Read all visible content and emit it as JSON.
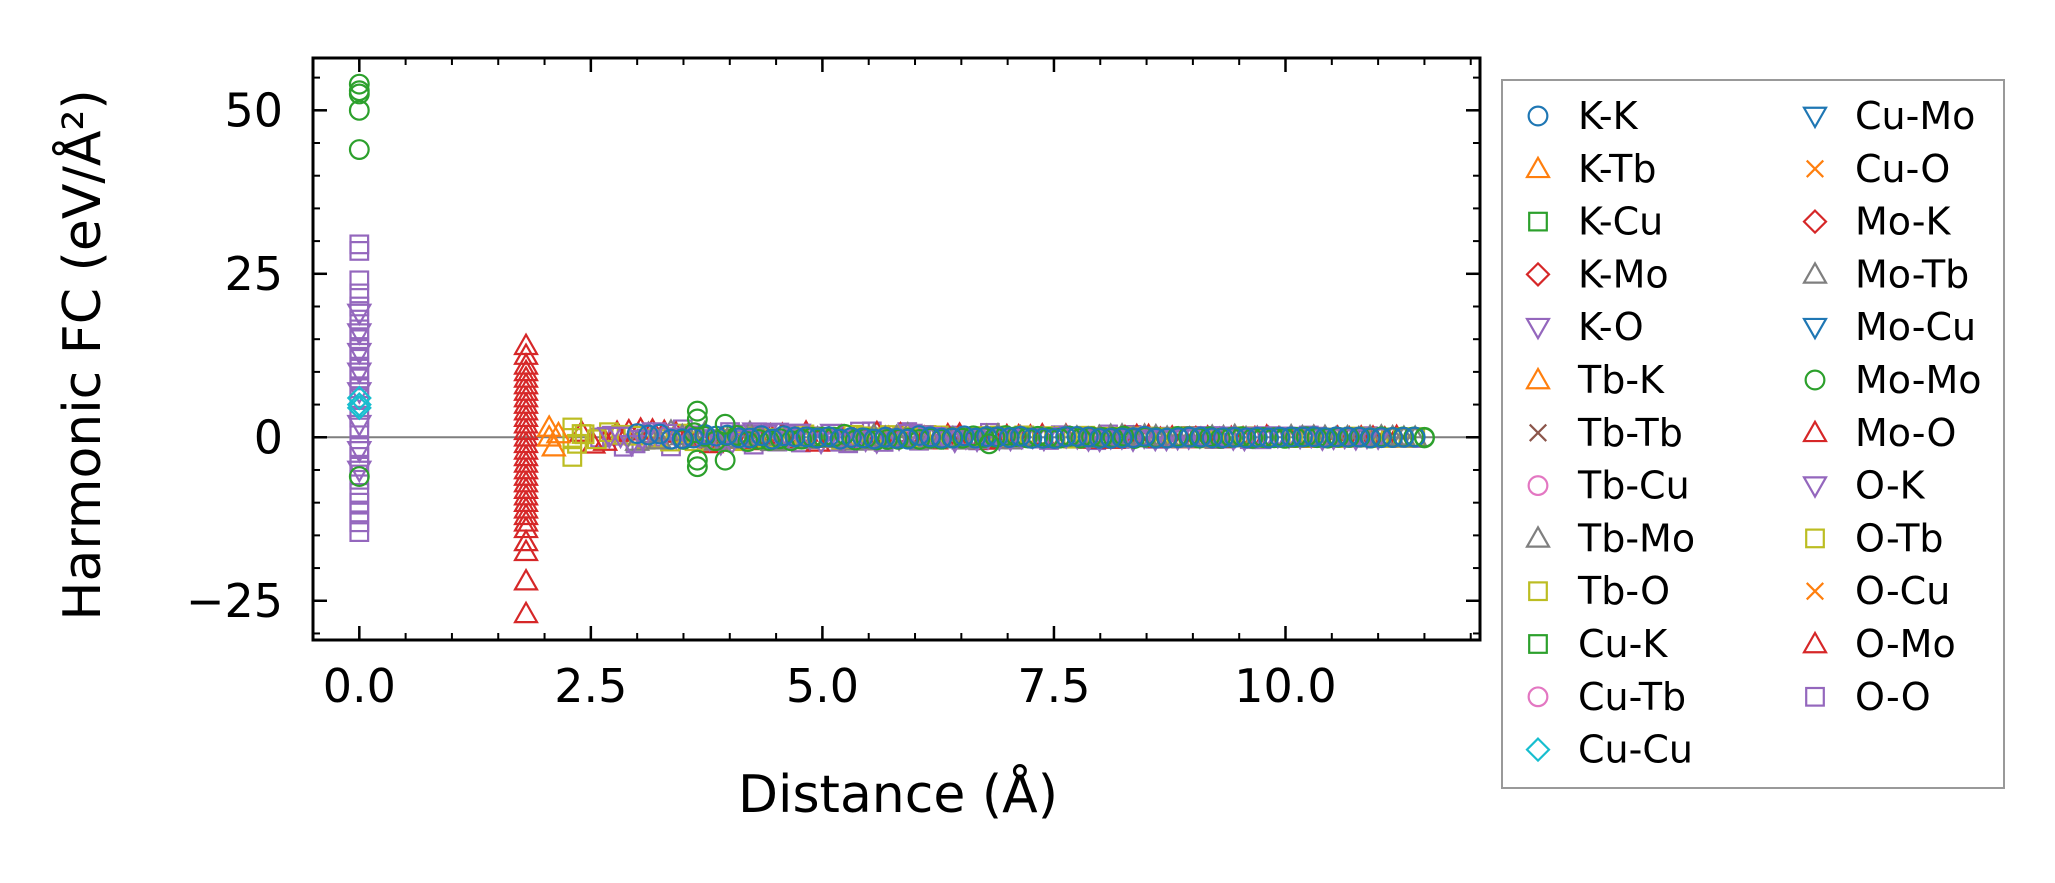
{
  "chart_data": {
    "type": "scatter",
    "title": "",
    "xlabel": "Distance (Å)",
    "ylabel": "Harmonic FC (eV/Å²)",
    "xlim": [
      -0.5,
      12.1
    ],
    "ylim": [
      -31,
      58
    ],
    "xticks": [
      {
        "value": 0.0,
        "label": "0.0"
      },
      {
        "value": 2.5,
        "label": "2.5"
      },
      {
        "value": 5.0,
        "label": "5.0"
      },
      {
        "value": 7.5,
        "label": "7.5"
      },
      {
        "value": 10.0,
        "label": "10.0"
      }
    ],
    "yticks": [
      {
        "value": -25,
        "label": "−25"
      },
      {
        "value": 0,
        "label": "0"
      },
      {
        "value": 25,
        "label": "25"
      },
      {
        "value": 50,
        "label": "50"
      }
    ],
    "zero_line": true,
    "legend_position": "outside-right",
    "legend": [
      {
        "label": "K-K",
        "marker": "circle",
        "color": "#1f77b4"
      },
      {
        "label": "K-Tb",
        "marker": "triangle-up",
        "color": "#ff7f0e"
      },
      {
        "label": "K-Cu",
        "marker": "square",
        "color": "#2ca02c"
      },
      {
        "label": "K-Mo",
        "marker": "diamond",
        "color": "#d62728"
      },
      {
        "label": "K-O",
        "marker": "triangle-down",
        "color": "#9467bd"
      },
      {
        "label": "Tb-K",
        "marker": "triangle-up",
        "color": "#ff7f0e"
      },
      {
        "label": "Tb-Tb",
        "marker": "x",
        "color": "#8c564b"
      },
      {
        "label": "Tb-Cu",
        "marker": "circle",
        "color": "#e377c2"
      },
      {
        "label": "Tb-Mo",
        "marker": "triangle-up",
        "color": "#7f7f7f"
      },
      {
        "label": "Tb-O",
        "marker": "square",
        "color": "#bcbd22"
      },
      {
        "label": "Cu-K",
        "marker": "square",
        "color": "#2ca02c"
      },
      {
        "label": "Cu-Tb",
        "marker": "circle",
        "color": "#e377c2"
      },
      {
        "label": "Cu-Cu",
        "marker": "diamond",
        "color": "#17becf"
      },
      {
        "label": "Cu-Mo",
        "marker": "triangle-down",
        "color": "#1f77b4"
      },
      {
        "label": "Cu-O",
        "marker": "x",
        "color": "#ff7f0e"
      },
      {
        "label": "Mo-K",
        "marker": "diamond",
        "color": "#d62728"
      },
      {
        "label": "Mo-Tb",
        "marker": "triangle-up",
        "color": "#7f7f7f"
      },
      {
        "label": "Mo-Cu",
        "marker": "triangle-down",
        "color": "#1f77b4"
      },
      {
        "label": "Mo-Mo",
        "marker": "circle",
        "color": "#2ca02c"
      },
      {
        "label": "Mo-O",
        "marker": "triangle-up",
        "color": "#d62728"
      },
      {
        "label": "O-K",
        "marker": "triangle-down",
        "color": "#9467bd"
      },
      {
        "label": "O-Tb",
        "marker": "square",
        "color": "#bcbd22"
      },
      {
        "label": "O-Cu",
        "marker": "x",
        "color": "#ff7f0e"
      },
      {
        "label": "O-Mo",
        "marker": "triangle-up",
        "color": "#d62728"
      },
      {
        "label": "O-O",
        "marker": "square",
        "color": "#9467bd"
      }
    ],
    "series": [
      {
        "name": "O-O",
        "marker": "square",
        "color": "#9467bd",
        "points": [
          [
            0,
            29.5
          ],
          [
            0,
            28.5
          ],
          [
            0,
            24
          ],
          [
            0,
            22
          ],
          [
            0,
            20
          ],
          [
            0,
            18
          ],
          [
            0,
            16.5
          ],
          [
            0,
            15
          ],
          [
            0,
            13.5
          ],
          [
            0,
            12
          ],
          [
            0,
            10.5
          ],
          [
            0,
            9
          ],
          [
            0,
            7.5
          ],
          [
            0,
            6
          ],
          [
            0,
            3
          ],
          [
            0,
            1.5
          ],
          [
            0,
            -1.5
          ],
          [
            0,
            -3
          ],
          [
            0,
            -4.5
          ],
          [
            0,
            -6.5
          ],
          [
            0,
            -8.5
          ],
          [
            0,
            -10
          ],
          [
            0,
            -11.5
          ],
          [
            0,
            -13
          ],
          [
            0,
            -14.5
          ]
        ]
      },
      {
        "name": "K-O",
        "marker": "triangle-down",
        "color": "#9467bd",
        "points": [
          [
            0,
            19
          ],
          [
            0,
            16
          ],
          [
            0,
            13
          ],
          [
            0,
            10
          ],
          [
            0,
            7
          ],
          [
            0,
            2
          ],
          [
            0,
            -2
          ],
          [
            0,
            -5
          ]
        ]
      },
      {
        "name": "Cu-Cu",
        "marker": "diamond",
        "color": "#17becf",
        "points": [
          [
            0,
            6
          ],
          [
            0,
            5
          ],
          [
            0,
            4.5
          ]
        ]
      },
      {
        "name": "Mo-Mo",
        "marker": "circle",
        "color": "#2ca02c",
        "points": [
          [
            0,
            54
          ],
          [
            0,
            53
          ],
          [
            0,
            52.5
          ],
          [
            0,
            50
          ],
          [
            0,
            44
          ],
          [
            0,
            -6
          ],
          [
            3.65,
            4
          ],
          [
            3.65,
            2.8
          ],
          [
            3.65,
            -3.5
          ],
          [
            3.65,
            -4.5
          ],
          [
            3.95,
            -3.5
          ],
          [
            3.95,
            2
          ],
          [
            6.8,
            -1
          ],
          [
            11.5,
            0
          ]
        ]
      },
      {
        "name": "Mo-O",
        "marker": "triangle-up",
        "color": "#d62728",
        "points": [
          [
            1.8,
            14
          ],
          [
            1.8,
            12.5
          ],
          [
            1.8,
            11
          ],
          [
            1.8,
            10
          ],
          [
            1.8,
            9
          ],
          [
            1.8,
            8
          ],
          [
            1.8,
            7
          ],
          [
            1.8,
            6
          ],
          [
            1.8,
            5
          ],
          [
            1.8,
            4
          ],
          [
            1.8,
            3
          ],
          [
            1.8,
            2
          ],
          [
            1.8,
            1
          ],
          [
            1.8,
            0
          ],
          [
            1.8,
            -1
          ],
          [
            1.8,
            -2
          ],
          [
            1.8,
            -3
          ],
          [
            1.8,
            -4
          ],
          [
            1.8,
            -5
          ],
          [
            1.8,
            -6
          ],
          [
            1.8,
            -7
          ],
          [
            1.8,
            -8
          ],
          [
            1.8,
            -9
          ],
          [
            1.8,
            -10
          ],
          [
            1.8,
            -11
          ],
          [
            1.8,
            -12
          ],
          [
            1.8,
            -13
          ],
          [
            1.8,
            -14
          ],
          [
            1.8,
            -16
          ],
          [
            1.8,
            -17.5
          ],
          [
            1.8,
            -22
          ],
          [
            1.8,
            -27
          ]
        ]
      },
      {
        "name": "Tb-O",
        "marker": "square",
        "color": "#bcbd22",
        "points": [
          [
            2.3,
            -3
          ],
          [
            2.3,
            1.5
          ],
          [
            2.35,
            -1
          ],
          [
            2.4,
            0.5
          ]
        ]
      },
      {
        "name": "K-Tb",
        "marker": "triangle-up",
        "color": "#ff7f0e",
        "points": [
          [
            2.05,
            0
          ],
          [
            2.05,
            1.5
          ],
          [
            2.1,
            -1.5
          ],
          [
            2.15,
            0.5
          ]
        ]
      }
    ],
    "band_series": [
      {
        "name": "O-O",
        "marker": "square",
        "color": "#9467bd",
        "x_range": [
          2.6,
          11.4
        ],
        "amplitude": 2.0
      },
      {
        "name": "Mo-O",
        "marker": "triangle-up",
        "color": "#d62728",
        "x_range": [
          2.4,
          11.2
        ],
        "amplitude": 1.5
      },
      {
        "name": "Tb-O",
        "marker": "square",
        "color": "#bcbd22",
        "x_range": [
          2.3,
          11.4
        ],
        "amplitude": 1.0
      },
      {
        "name": "Tb-Mo",
        "marker": "triangle-up",
        "color": "#7f7f7f",
        "x_range": [
          3.0,
          11.4
        ],
        "amplitude": 1.2
      },
      {
        "name": "K-O",
        "marker": "triangle-down",
        "color": "#9467bd",
        "x_range": [
          2.7,
          11.0
        ],
        "amplitude": 1.5
      },
      {
        "name": "Mo-Mo",
        "marker": "circle",
        "color": "#2ca02c",
        "x_range": [
          3.5,
          11.5
        ],
        "amplitude": 0.8
      },
      {
        "name": "K-K",
        "marker": "circle",
        "color": "#1f77b4",
        "x_range": [
          3.0,
          11.4
        ],
        "amplitude": 0.6
      }
    ]
  }
}
